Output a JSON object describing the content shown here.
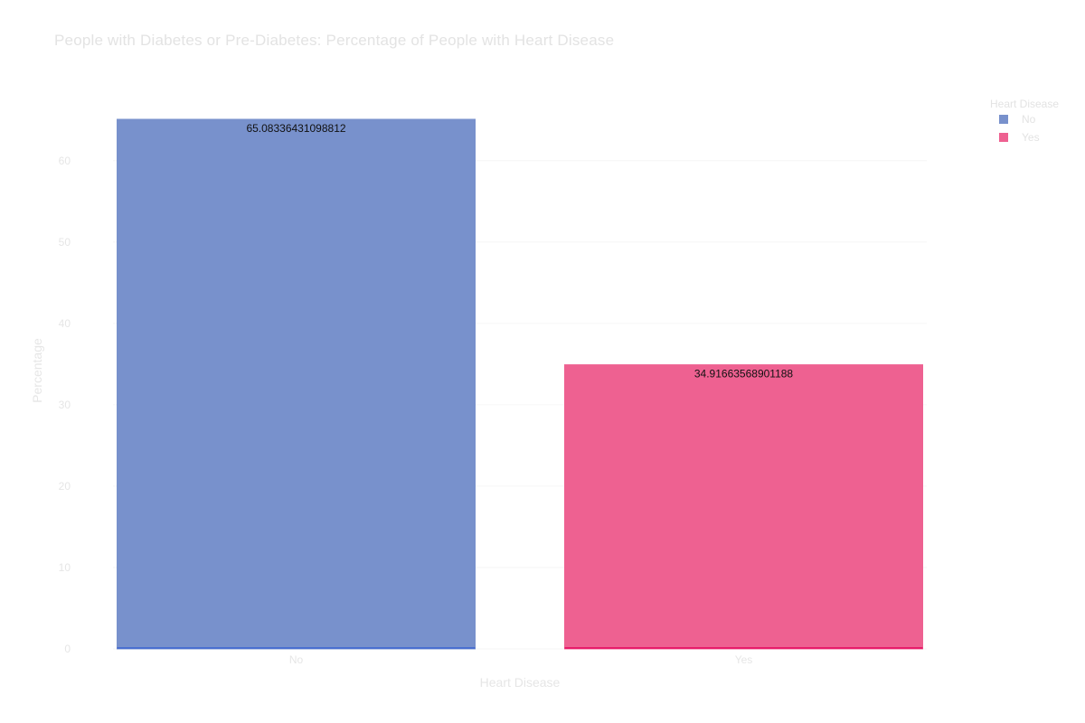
{
  "chart_data": {
    "type": "bar",
    "title": "People with Diabetes or Pre-Diabetes: Percentage of People with Heart Disease",
    "xlabel": "Heart Disease",
    "ylabel": "Percentage",
    "categories": [
      "No",
      "Yes"
    ],
    "values": [
      65.08336431098812,
      34.91663568901188
    ],
    "value_labels": [
      "65.08336431098812",
      "34.91663568901188"
    ],
    "yticks": [
      0,
      10,
      20,
      30,
      40,
      50,
      60
    ],
    "ytick_labels": [
      "0",
      "10",
      "20",
      "30",
      "40",
      "50",
      "60"
    ],
    "ylim": [
      0,
      65.08336431098812
    ],
    "grid": true,
    "legend": {
      "title": "Heart Disease",
      "placement": "top-right",
      "entries": [
        {
          "label": "No",
          "color": "#7891cc"
        },
        {
          "label": "Yes",
          "color": "#ee6191"
        }
      ]
    },
    "colors": [
      "#7891cc",
      "#ee6191"
    ],
    "edge_colors": [
      "#4a6fd0",
      "#e81c6a"
    ]
  }
}
